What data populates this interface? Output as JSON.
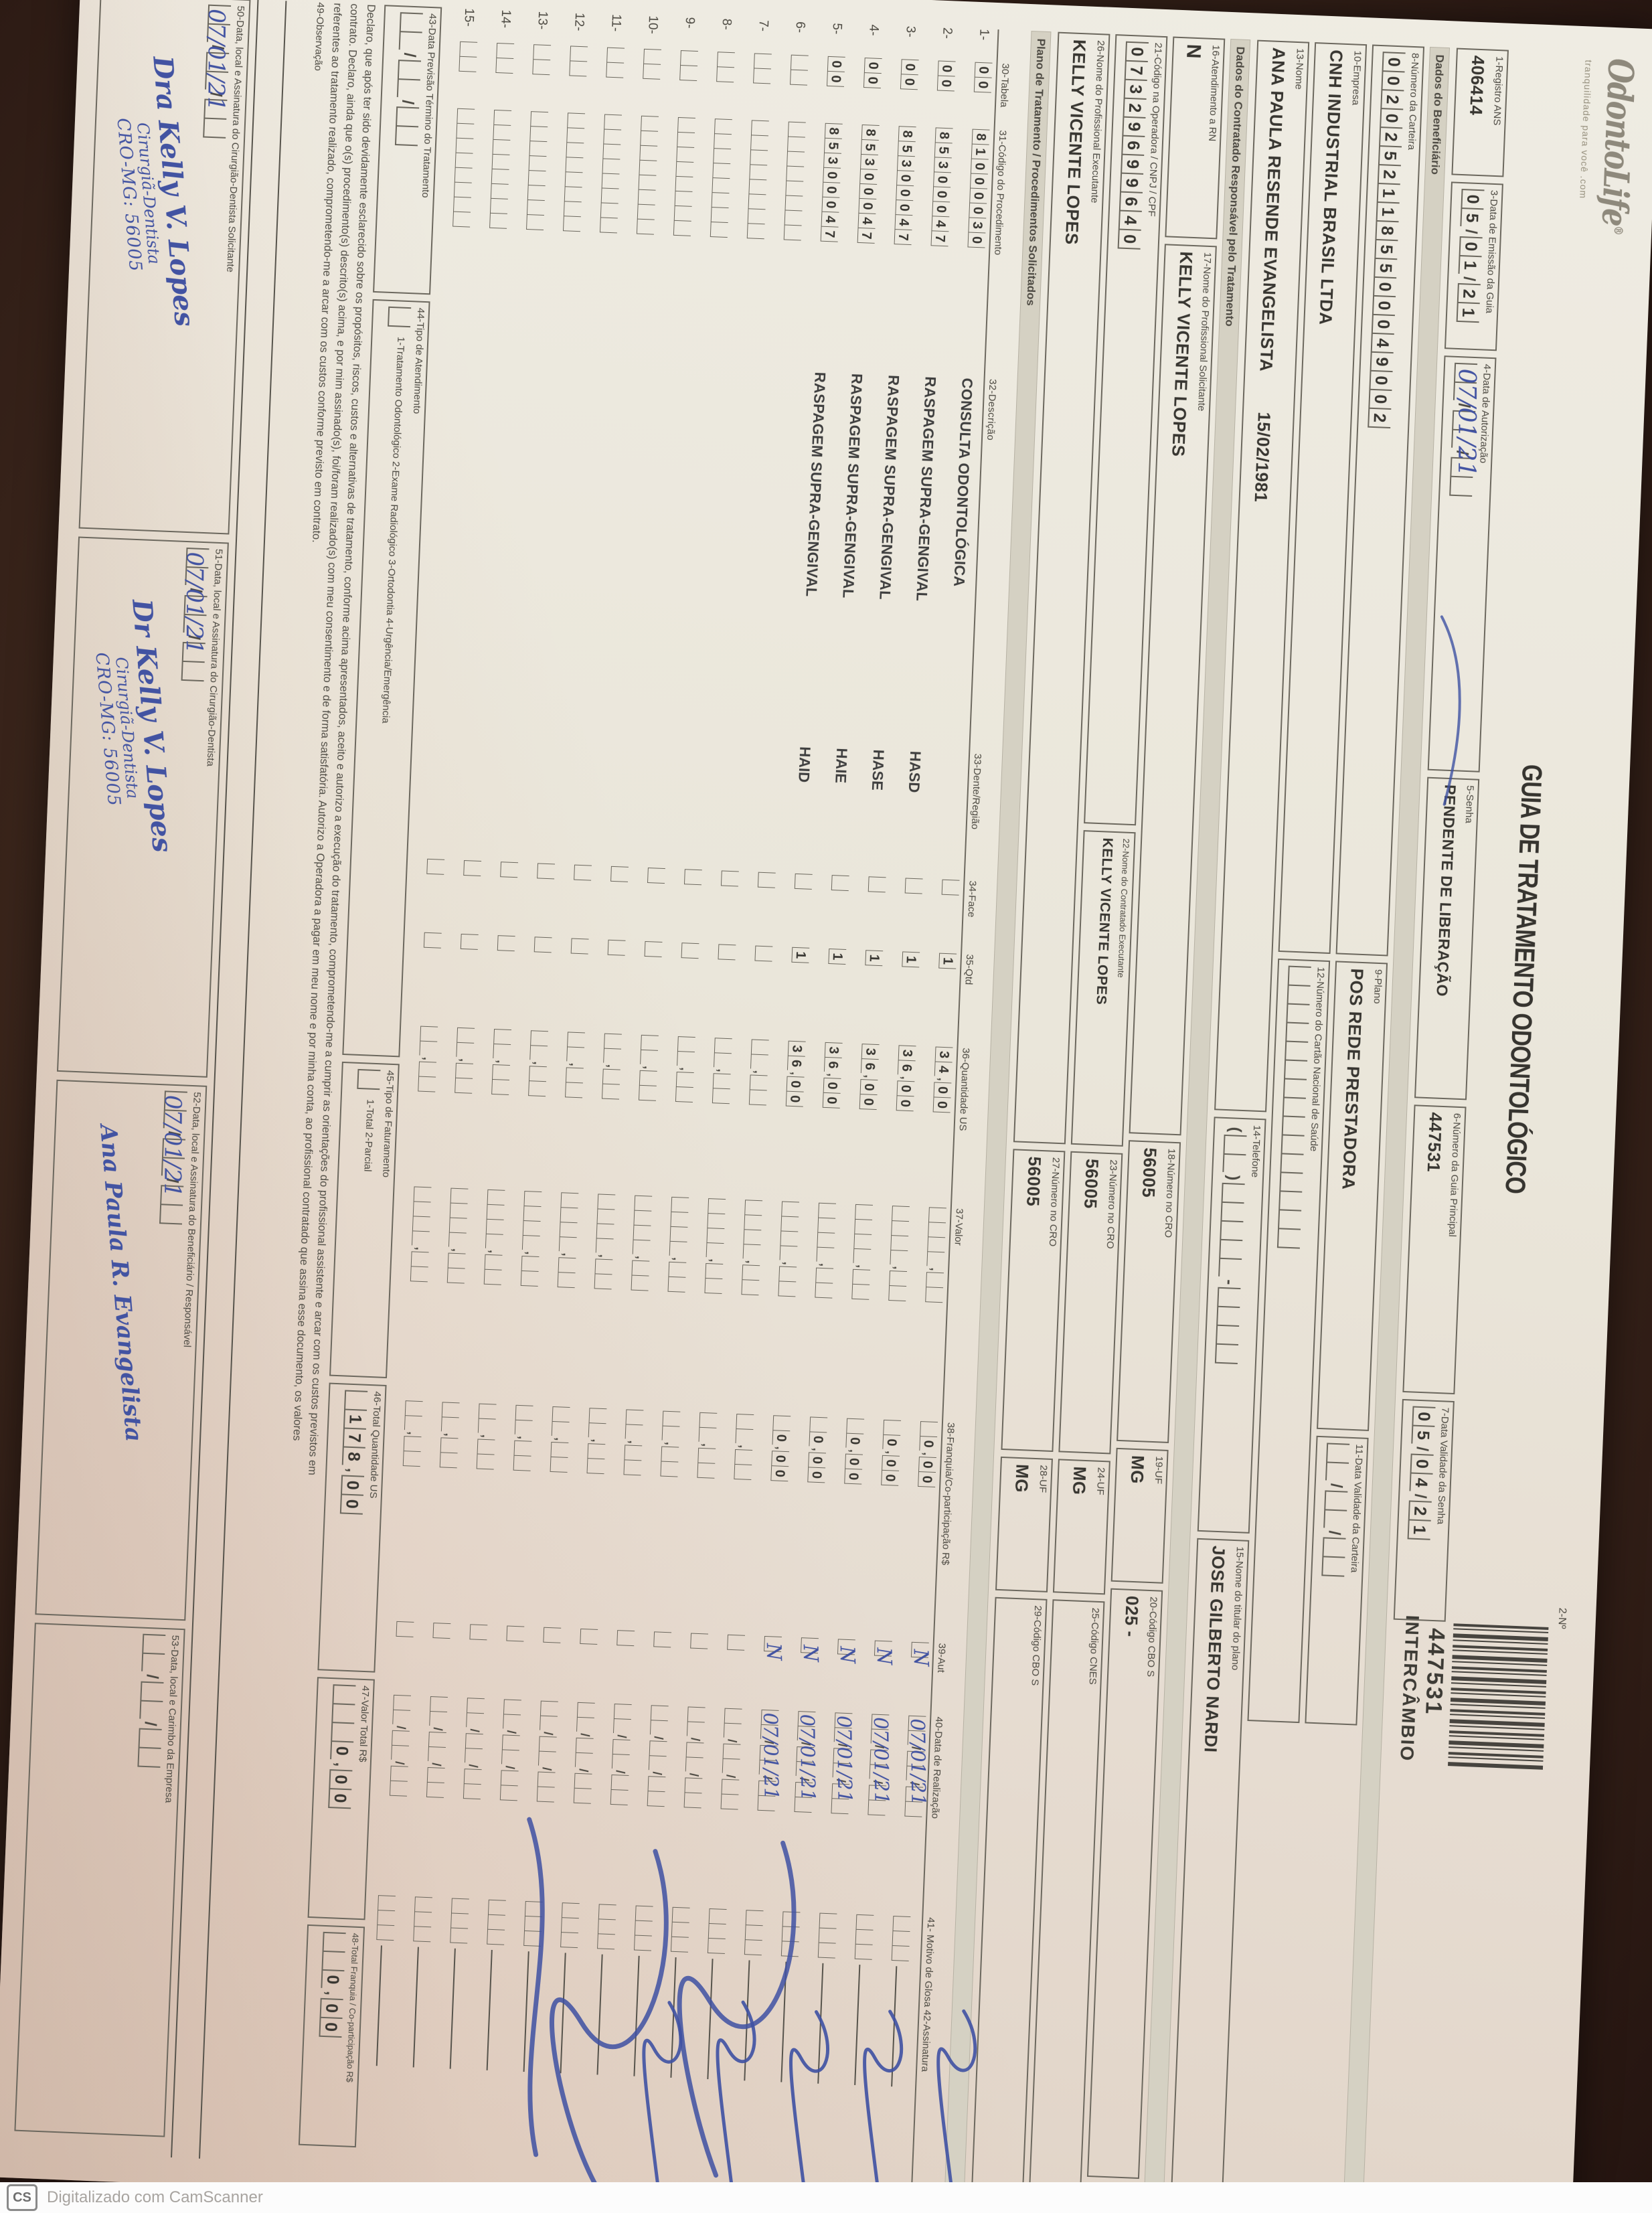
{
  "header": {
    "logo": "OdontoLife",
    "logo_reg": "®",
    "tagline": "tranquilidade para você .com",
    "title": "GUIA DE TRATAMENTO ODONTOLÓGICO",
    "barcode_label": "2-Nº",
    "guide_number": "447531",
    "guide_type": "INTERCÂMBIO"
  },
  "row1": {
    "registro_ans": {
      "label": "1-Registro ANS",
      "value": "406414"
    },
    "emissao": {
      "label": "3-Data de Emissão da Guia",
      "cells": "05/01/21"
    },
    "autorizacao": {
      "label": "4-Data de Autorização",
      "cells": "  /  /  ",
      "hand": "07/01/21"
    },
    "senha": {
      "label": "5-Senha",
      "value": "PENDENTE DE LIBERAÇÃO"
    },
    "guia_principal": {
      "label": "6-Número da Guia Principal",
      "value": "447531"
    },
    "validade_senha": {
      "label": "7-Data Validade da Senha",
      "cells": "05/04/21"
    }
  },
  "beneficiario": {
    "section": "Dados do Beneficiário",
    "carteira": {
      "label": "8-Número da Carteira",
      "cells": "00202521185500049002"
    },
    "plano": {
      "label": "9-Plano",
      "value": "POS REDE PRESTADORA"
    },
    "validade_carteira": {
      "label": "11-Data Validade da Carteira",
      "cells": "  /  /  "
    },
    "empresa": {
      "label": "10-Empresa",
      "value": "CNH INDUSTRIAL BRASIL LTDA"
    },
    "cartao_nacional": {
      "label": "12-Número do Cartão Nacional de Saúde",
      "cells": "               "
    },
    "nome": {
      "label": "13-Nome",
      "value": "ANA PAULA RESENDE EVANGELISTA",
      "nascimento": "15/02/1981"
    },
    "telefone": {
      "label": "14-Telefone",
      "cells": "(  )     -    "
    },
    "titular": {
      "label": "15-Nome do titular do plano",
      "value": "JOSE GILBERTO NARDI"
    }
  },
  "contratado": {
    "section": "Dados do Contratado Responsável pelo Tratamento",
    "rn": {
      "label": "16-Atendimento a RN",
      "value": "N"
    },
    "solicitante": {
      "label": "17-Nome do Profissional Solicitante",
      "value": "KELLY VICENTE LOPES"
    },
    "cro1": {
      "label": "18-Número no CRO",
      "value": "56005"
    },
    "uf1": {
      "label": "19-UF",
      "value": "MG"
    },
    "cbo1": {
      "label": "20-Código CBO S",
      "value": "025 -"
    },
    "codigo_operadora": {
      "label": "21-Código na Operadora / CNPJ / CPF",
      "cells": "07329699640"
    },
    "executante_contratado": {
      "label": "22-Nome do Contratado Executante",
      "value": "KELLY VICENTE LOPES"
    },
    "cro2": {
      "label": "23-Número no CRO",
      "value": "56005"
    },
    "uf2": {
      "label": "24-UF",
      "value": "MG"
    },
    "cnes": {
      "label": "25-Código CNES",
      "value": ""
    },
    "executante_profissional": {
      "label": "26-Nome do Profissional Executante",
      "value": "KELLY VICENTE LOPES"
    },
    "cro3": {
      "label": "27-Número no CRO",
      "value": "56005"
    },
    "uf3": {
      "label": "28-UF",
      "value": "MG"
    },
    "cbo2": {
      "label": "29-Código CBO S",
      "value": ""
    }
  },
  "tabela": {
    "section": "Plano de Tratamento / Procedimentos Solicitados",
    "headers": {
      "tab": "30-Tabela",
      "cod": "31-Código do Procedimento",
      "desc": "32-Descrição",
      "dente": "33-Dente/Região",
      "face": "34-Face",
      "qtd": "35-Qtd",
      "us": "36-Quantidade US",
      "valor": "37-Valor",
      "franq": "38-Franquia/Co-participação R$",
      "aut": "39-Aut",
      "data": "40-Data de Realização",
      "glosa": "41- Motivo de Glosa  42-Assinatura"
    },
    "rows": [
      {
        "n": "1-",
        "tab": "00",
        "cod": "81000030",
        "desc": "CONSULTA ODONTOLÓGICA",
        "dente": "",
        "face": " ",
        "qtd": "1",
        "us": "34,00",
        "valor": "    ,  ",
        "franq": " 0,00",
        "autc": " ",
        "aut": "N",
        "datac": "  /  /  ",
        "data": "07/01/21",
        "glosa": "   "
      },
      {
        "n": "2-",
        "tab": "00",
        "cod": "85300047",
        "desc": "RASPAGEM SUPRA-GENGIVAL",
        "dente": "HASD",
        "face": " ",
        "qtd": "1",
        "us": "36,00",
        "valor": "    ,  ",
        "franq": " 0,00",
        "autc": " ",
        "aut": "N",
        "datac": "  /  /  ",
        "data": "07/01/21",
        "glosa": "   "
      },
      {
        "n": "3-",
        "tab": "00",
        "cod": "85300047",
        "desc": "RASPAGEM SUPRA-GENGIVAL",
        "dente": "HASE",
        "face": " ",
        "qtd": "1",
        "us": "36,00",
        "valor": "    ,  ",
        "franq": " 0,00",
        "autc": " ",
        "aut": "N",
        "datac": "  /  /  ",
        "data": "07/01/21",
        "glosa": "   "
      },
      {
        "n": "4-",
        "tab": "00",
        "cod": "85300047",
        "desc": "RASPAGEM SUPRA-GENGIVAL",
        "dente": "HAIE",
        "face": " ",
        "qtd": "1",
        "us": "36,00",
        "valor": "    ,  ",
        "franq": " 0,00",
        "autc": " ",
        "aut": "N",
        "datac": "  /  /  ",
        "data": "07/01/21",
        "glosa": "   "
      },
      {
        "n": "5-",
        "tab": "00",
        "cod": "85300047",
        "desc": "RASPAGEM SUPRA-GENGIVAL",
        "dente": "HAID",
        "face": " ",
        "qtd": "1",
        "us": "36,00",
        "valor": "    ,  ",
        "franq": " 0,00",
        "autc": " ",
        "aut": "N",
        "datac": "  /  /  ",
        "data": "07/01/21",
        "glosa": "   "
      },
      {
        "n": "6-",
        "tab": "  ",
        "cod": "        ",
        "desc": "",
        "dente": "",
        "face": " ",
        "qtd": " ",
        "us": "  ,  ",
        "valor": "    ,  ",
        "franq": "  ,  ",
        "autc": " ",
        "aut": "",
        "datac": "  /  /  ",
        "data": "",
        "glosa": "   "
      },
      {
        "n": "7-",
        "tab": "  ",
        "cod": "        ",
        "desc": "",
        "dente": "",
        "face": " ",
        "qtd": " ",
        "us": "  ,  ",
        "valor": "    ,  ",
        "franq": "  ,  ",
        "autc": " ",
        "aut": "",
        "datac": "  /  /  ",
        "data": "",
        "glosa": "   "
      },
      {
        "n": "8-",
        "tab": "  ",
        "cod": "        ",
        "desc": "",
        "dente": "",
        "face": " ",
        "qtd": " ",
        "us": "  ,  ",
        "valor": "    ,  ",
        "franq": "  ,  ",
        "autc": " ",
        "aut": "",
        "datac": "  /  /  ",
        "data": "",
        "glosa": "   "
      },
      {
        "n": "9-",
        "tab": "  ",
        "cod": "        ",
        "desc": "",
        "dente": "",
        "face": " ",
        "qtd": " ",
        "us": "  ,  ",
        "valor": "    ,  ",
        "franq": "  ,  ",
        "autc": " ",
        "aut": "",
        "datac": "  /  /  ",
        "data": "",
        "glosa": "   "
      },
      {
        "n": "10-",
        "tab": "  ",
        "cod": "        ",
        "desc": "",
        "dente": "",
        "face": " ",
        "qtd": " ",
        "us": "  ,  ",
        "valor": "    ,  ",
        "franq": "  ,  ",
        "autc": " ",
        "aut": "",
        "datac": "  /  /  ",
        "data": "",
        "glosa": "   "
      },
      {
        "n": "11-",
        "tab": "  ",
        "cod": "        ",
        "desc": "",
        "dente": "",
        "face": " ",
        "qtd": " ",
        "us": "  ,  ",
        "valor": "    ,  ",
        "franq": "  ,  ",
        "autc": " ",
        "aut": "",
        "datac": "  /  /  ",
        "data": "",
        "glosa": "   "
      },
      {
        "n": "12-",
        "tab": "  ",
        "cod": "        ",
        "desc": "",
        "dente": "",
        "face": " ",
        "qtd": " ",
        "us": "  ,  ",
        "valor": "    ,  ",
        "franq": "  ,  ",
        "autc": " ",
        "aut": "",
        "datac": "  /  /  ",
        "data": "",
        "glosa": "   "
      },
      {
        "n": "13-",
        "tab": "  ",
        "cod": "        ",
        "desc": "",
        "dente": "",
        "face": " ",
        "qtd": " ",
        "us": "  ,  ",
        "valor": "    ,  ",
        "franq": "  ,  ",
        "autc": " ",
        "aut": "",
        "datac": "  /  /  ",
        "data": "",
        "glosa": "   "
      },
      {
        "n": "14-",
        "tab": "  ",
        "cod": "        ",
        "desc": "",
        "dente": "",
        "face": " ",
        "qtd": " ",
        "us": "  ,  ",
        "valor": "    ,  ",
        "franq": "  ,  ",
        "autc": " ",
        "aut": "",
        "datac": "  /  /  ",
        "data": "",
        "glosa": "   "
      },
      {
        "n": "15-",
        "tab": "  ",
        "cod": "        ",
        "desc": "",
        "dente": "",
        "face": " ",
        "qtd": " ",
        "us": "  ,  ",
        "valor": "    ,  ",
        "franq": "  ,  ",
        "autc": " ",
        "aut": "",
        "datac": "  /  /  ",
        "data": "",
        "glosa": "   "
      }
    ]
  },
  "rodape": {
    "previsao": {
      "label": "43-Data Previsão Término do Tratamento",
      "cells": "  /  /  "
    },
    "tipo_atendimento": {
      "label": "44-Tipo de Atendimento",
      "box": " ",
      "options": "1-Tratamento Odontológico   2-Exame Radiológico   3-Ortodontia   4-Urgência/Emergência"
    },
    "tipo_faturamento": {
      "label": "45-Tipo de Faturamento",
      "box": " ",
      "options": "1-Total   2-Parcial"
    },
    "total_us": {
      "label": "46-Total Quantidade US",
      "cells": " 178,00"
    },
    "valor_total": {
      "label": "47-Valor Total R$",
      "cells": "   0,00"
    },
    "total_franquia": {
      "label": "48-Total Franquia / Co-participação R$",
      "cells": "  0,00"
    },
    "declaracao": {
      "l1": "Declaro, que após ter sido devidamente esclarecido sobre os propósitos, riscos, custos e alternativas de tratamento, conforme acima apresentados, aceito e autorizo a execução do tratamento, comprometendo-me a cumprir as orientações do profissional assistente e arcar com os custos previstos em",
      "l2": "contrato. Declaro, ainda que o(s) procedimento(s) descrito(s) acima, e por mim assinado(s), foi/foram realizado(s) com meu consentimento e de forma satisfatória. Autorizo a Operadora a pagar em meu nome e por minha conta, ao profissional contratado que assina esse documento, os valores",
      "l3": "referentes ao tratamento realizado, comprometendo-me a arcar com os custos conforme previsto em contrato."
    },
    "observacao": {
      "label": "49-Observação"
    },
    "sig50": {
      "label": "50-Data, local e Assinatura do Cirurgião-Dentista Solicitante",
      "cells": "  /  /  ",
      "hand": "07/01/21",
      "l1": "Dra Kelly V. Lopes",
      "l2": "Cirurgiã-Dentista",
      "l3": "CRO-MG: 56005"
    },
    "sig51": {
      "label": "51-Data, local e Assinatura do Cirurgião-Dentista",
      "cells": "  /  /  ",
      "hand": "07/01/21",
      "l1": "Dr Kelly V. Lopes",
      "l2": "Cirurgiã-Dentista",
      "l3": "CRO-MG: 56005"
    },
    "sig52": {
      "label": "52-Data, local e Assinatura do Beneficiário / Responsável",
      "cells": "  /  /  ",
      "hand": "07/01/21",
      "l1": "Ana Paula R. Evangelista",
      "l2": "",
      "l3": ""
    },
    "sig53": {
      "label": "53-Data, local e Carimbo da Empresa",
      "cells": "  /  /  "
    }
  },
  "footer": {
    "logo": "CS",
    "text": "Digitalizado com CamScanner"
  }
}
